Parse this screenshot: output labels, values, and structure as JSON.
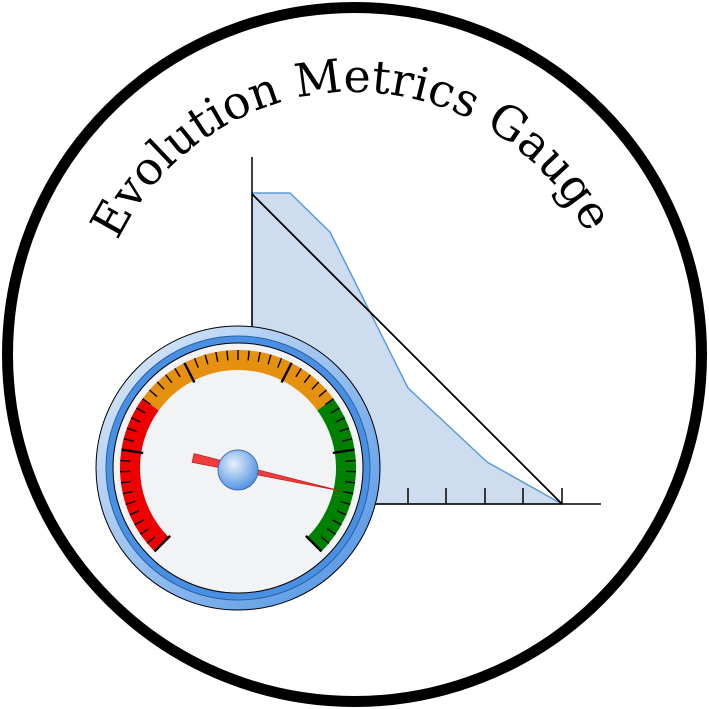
{
  "logo": {
    "title": "Evolution Metrics Gauge"
  },
  "colors": {
    "ring": "#000000",
    "area_fill": "#cddcef",
    "area_stroke": "#5b9bd5",
    "gauge_bezel_light": "#c6dcf5",
    "gauge_bezel_dark": "#4a90e2",
    "gauge_face": "#f2f3f5",
    "zone_red": "#ee0000",
    "zone_orange": "#e6900f",
    "zone_green": "#008000",
    "needle": "#f03c3c",
    "hub": "#5b9be8"
  },
  "icons": {
    "area-chart": "area-chart-icon",
    "gauge": "gauge-icon"
  },
  "gauge": {
    "needle_value": 0.88
  }
}
